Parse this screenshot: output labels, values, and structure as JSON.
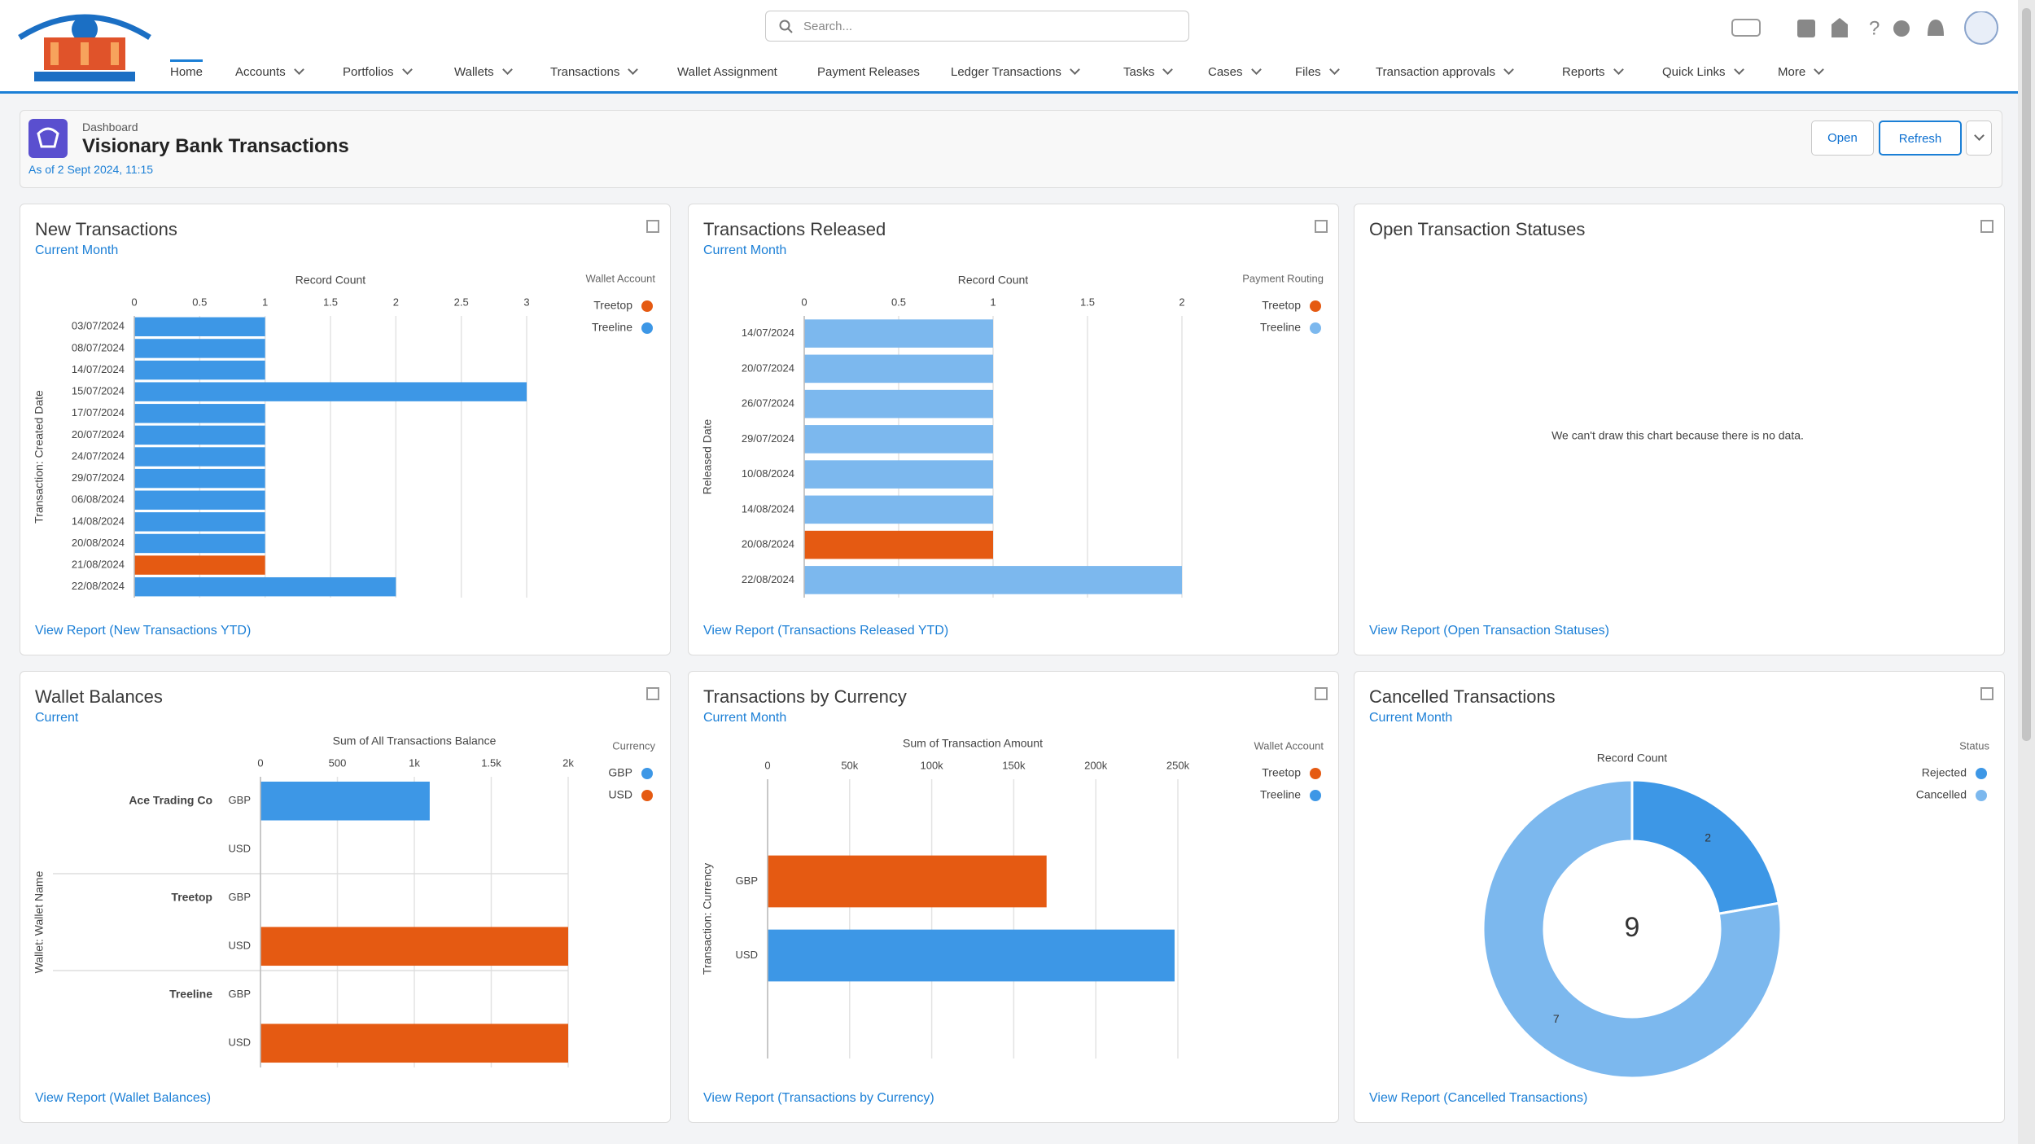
{
  "app": {
    "search_placeholder": "Search...",
    "nav": [
      "Home",
      "Accounts",
      "Portfolios",
      "Wallets",
      "Transactions",
      "Wallet Assignment",
      "Payment Releases",
      "Ledger Transactions",
      "Tasks",
      "Cases",
      "Files",
      "Transaction approvals",
      "Reports",
      "Quick Links",
      "More"
    ]
  },
  "header": {
    "label": "Dashboard",
    "title": "Visionary Bank Transactions",
    "as_of": "As of 2 Sept 2024, 11:15",
    "buttons": [
      "Open",
      "Refresh"
    ]
  },
  "chart_data": [
    {
      "type": "bar",
      "title": "New Transactions",
      "subtitle": "Current Month",
      "xlabel": "Record Count",
      "ylabel": "Transaction: Created Date",
      "legend_title": "Wallet Account",
      "categories": [
        "03/07/2024",
        "08/07/2024",
        "14/07/2024",
        "15/07/2024",
        "17/07/2024",
        "20/07/2024",
        "24/07/2024",
        "29/07/2024",
        "06/08/2024",
        "14/08/2024",
        "20/08/2024",
        "21/08/2024",
        "22/08/2024"
      ],
      "series": [
        {
          "name": "Treetop",
          "color": "#e55a12",
          "values": [
            null,
            null,
            null,
            null,
            null,
            null,
            null,
            null,
            null,
            null,
            null,
            1,
            null
          ]
        },
        {
          "name": "Treeline",
          "color": "#3d97e6",
          "values": [
            1,
            1,
            1,
            3,
            1,
            1,
            1,
            1,
            1,
            1,
            1,
            null,
            2
          ]
        }
      ],
      "xlim": [
        0,
        3
      ],
      "xticks": [
        0,
        0.5,
        1,
        1.5,
        2,
        2.5,
        3
      ],
      "grid": true,
      "link": "View Report (New Transactions YTD)"
    },
    {
      "type": "bar",
      "title": "Transactions Released",
      "subtitle": "Current Month",
      "xlabel": "Record Count",
      "ylabel": "Released Date",
      "legend_title": "Payment Routing",
      "categories": [
        "14/07/2024",
        "20/07/2024",
        "26/07/2024",
        "29/07/2024",
        "10/08/2024",
        "14/08/2024",
        "20/08/2024",
        "22/08/2024"
      ],
      "series": [
        {
          "name": "Treetop",
          "color": "#e55a12",
          "values": [
            null,
            null,
            null,
            null,
            null,
            null,
            1,
            null
          ]
        },
        {
          "name": "Treeline",
          "color": "#7cb8ee",
          "values": [
            1,
            1,
            1,
            1,
            1,
            1,
            null,
            2
          ]
        }
      ],
      "xlim": [
        0,
        2
      ],
      "xticks": [
        0,
        0.5,
        1,
        1.5,
        2
      ],
      "grid": true,
      "link": "View Report (Transactions Released YTD)"
    },
    {
      "type": "empty",
      "title": "Open Transaction Statuses",
      "message": "We can't draw this chart because there is no data.",
      "link": "View Report (Open Transaction Statuses)"
    },
    {
      "type": "bar",
      "title": "Wallet Balances",
      "subtitle": "Current",
      "xlabel": "Sum of All Transactions Balance",
      "ylabel": "Wallet: Wallet Name",
      "legend_title": "Currency",
      "groups": [
        "Ace Trading Co",
        "Treetop",
        "Treeline"
      ],
      "categories": [
        "GBP",
        "USD",
        "GBP",
        "USD",
        "GBP",
        "USD"
      ],
      "series": [
        {
          "name": "GBP",
          "color": "#3d97e6",
          "values": [
            1100,
            null,
            null,
            null,
            null,
            null
          ]
        },
        {
          "name": "USD",
          "color": "#e55a12",
          "values": [
            null,
            null,
            null,
            2000,
            null,
            2000
          ]
        }
      ],
      "xlim": [
        0,
        2000
      ],
      "xticks": [
        0,
        500,
        {
          "value": 1000,
          "label": "1k"
        },
        {
          "value": 1500,
          "label": "1.5k"
        },
        {
          "value": 2000,
          "label": "2k"
        }
      ],
      "grid": true,
      "link": "View Report (Wallet Balances)"
    },
    {
      "type": "bar",
      "title": "Transactions by Currency",
      "subtitle": "Current Month",
      "xlabel": "Sum of Transaction Amount",
      "ylabel": "Transaction: Currency",
      "legend_title": "Wallet Account",
      "categories": [
        "GBP",
        "USD"
      ],
      "series": [
        {
          "name": "Treetop",
          "color": "#e55a12",
          "values": [
            170000,
            null
          ]
        },
        {
          "name": "Treeline",
          "color": "#3d97e6",
          "values": [
            null,
            248000
          ]
        }
      ],
      "xlim": [
        0,
        250000
      ],
      "xticks": [
        0,
        {
          "value": 50000,
          "label": "50k"
        },
        {
          "value": 100000,
          "label": "100k"
        },
        {
          "value": 150000,
          "label": "150k"
        },
        {
          "value": 200000,
          "label": "200k"
        },
        {
          "value": 250000,
          "label": "250k"
        }
      ],
      "grid": true,
      "link": "View Report (Transactions by Currency)"
    },
    {
      "type": "donut",
      "title": "Cancelled Transactions",
      "subtitle": "Current Month",
      "chart_label": "Record Count",
      "legend_title": "Status",
      "categories": [
        "Rejected",
        "Cancelled"
      ],
      "values": [
        2,
        7
      ],
      "colors": [
        "#3d97e6",
        "#7cb8ee"
      ],
      "center_value": 9,
      "link": "View Report (Cancelled Transactions)"
    }
  ]
}
